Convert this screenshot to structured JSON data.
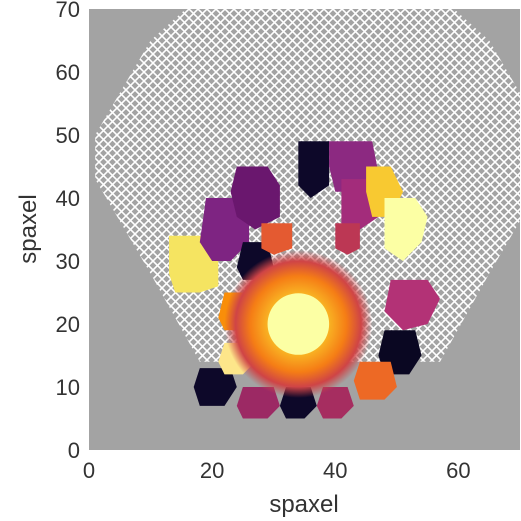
{
  "chart_data": {
    "type": "heatmap",
    "title": "",
    "xlabel": "spaxel",
    "ylabel": "spaxel",
    "xlim": [
      0,
      70
    ],
    "ylim": [
      0,
      70
    ],
    "x_ticks": [
      "0",
      "20",
      "40",
      "60"
    ],
    "y_ticks": [
      "0",
      "10",
      "20",
      "30",
      "40",
      "50",
      "60",
      "70"
    ],
    "grid": false,
    "colormap": "inferno",
    "background_color": "#a3a3a3",
    "hatch_region": {
      "pattern": "crosshatch",
      "outline": [
        [
          18,
          72
        ],
        [
          57,
          72
        ],
        [
          65,
          65
        ],
        [
          74,
          50
        ],
        [
          74,
          43
        ],
        [
          65,
          28
        ],
        [
          57,
          14
        ],
        [
          18,
          14
        ],
        [
          10,
          28
        ],
        [
          1,
          43
        ],
        [
          1,
          50
        ],
        [
          10,
          65
        ]
      ]
    },
    "regions": [
      {
        "color": "#f5e461",
        "polygon": [
          [
            13,
            34
          ],
          [
            20,
            34
          ],
          [
            21,
            32
          ],
          [
            21,
            26
          ],
          [
            18,
            25
          ],
          [
            14,
            25
          ],
          [
            13,
            28
          ]
        ]
      },
      {
        "color": "#7e2482",
        "polygon": [
          [
            19,
            40
          ],
          [
            24,
            40
          ],
          [
            26,
            38
          ],
          [
            26,
            33
          ],
          [
            23,
            30
          ],
          [
            20,
            30
          ],
          [
            18,
            33
          ]
        ]
      },
      {
        "color": "#6a176e",
        "polygon": [
          [
            24,
            45
          ],
          [
            29,
            45
          ],
          [
            31,
            42
          ],
          [
            31,
            37
          ],
          [
            27,
            35
          ],
          [
            24,
            37
          ],
          [
            23,
            41
          ]
        ]
      },
      {
        "color": "#0d0829",
        "polygon": [
          [
            34,
            49
          ],
          [
            39,
            49
          ],
          [
            39,
            42
          ],
          [
            36,
            40
          ],
          [
            34,
            42
          ]
        ]
      },
      {
        "color": "#8c2981",
        "polygon": [
          [
            39,
            49
          ],
          [
            46,
            49
          ],
          [
            47,
            44
          ],
          [
            44,
            41
          ],
          [
            40,
            41
          ],
          [
            39,
            45
          ]
        ]
      },
      {
        "color": "#a32c7b",
        "polygon": [
          [
            41,
            43
          ],
          [
            47,
            43
          ],
          [
            47,
            37
          ],
          [
            44,
            35
          ],
          [
            41,
            36
          ]
        ]
      },
      {
        "color": "#f8c931",
        "polygon": [
          [
            45,
            45
          ],
          [
            49,
            45
          ],
          [
            51,
            41
          ],
          [
            49,
            37
          ],
          [
            46,
            37
          ],
          [
            45,
            41
          ]
        ]
      },
      {
        "color": "#fcffa4",
        "polygon": [
          [
            48,
            40
          ],
          [
            53,
            40
          ],
          [
            55,
            37
          ],
          [
            54,
            33
          ],
          [
            51,
            30
          ],
          [
            48,
            32
          ]
        ]
      },
      {
        "color": "#b33276",
        "polygon": [
          [
            49,
            27
          ],
          [
            55,
            27
          ],
          [
            57,
            24
          ],
          [
            55,
            20
          ],
          [
            51,
            19
          ],
          [
            48,
            22
          ]
        ]
      },
      {
        "color": "#0a0722",
        "polygon": [
          [
            48,
            19
          ],
          [
            53,
            19
          ],
          [
            54,
            15
          ],
          [
            52,
            12
          ],
          [
            48,
            12
          ],
          [
            47,
            15
          ]
        ]
      },
      {
        "color": "#ed6925",
        "polygon": [
          [
            44,
            14
          ],
          [
            49,
            14
          ],
          [
            50,
            10
          ],
          [
            48,
            8
          ],
          [
            44,
            8
          ],
          [
            43,
            11
          ]
        ]
      },
      {
        "color": "#a62d60",
        "polygon": [
          [
            38,
            10
          ],
          [
            42,
            10
          ],
          [
            43,
            7
          ],
          [
            41,
            5
          ],
          [
            38,
            5
          ],
          [
            37,
            7
          ]
        ]
      },
      {
        "color": "#0d0829",
        "polygon": [
          [
            32,
            10
          ],
          [
            36,
            10
          ],
          [
            37,
            7
          ],
          [
            35,
            5
          ],
          [
            32,
            5
          ],
          [
            31,
            7
          ]
        ]
      },
      {
        "color": "#9c2964",
        "polygon": [
          [
            25,
            10
          ],
          [
            30,
            10
          ],
          [
            31,
            7
          ],
          [
            29,
            5
          ],
          [
            25,
            5
          ],
          [
            24,
            7
          ]
        ]
      },
      {
        "color": "#0d0829",
        "polygon": [
          [
            18,
            13
          ],
          [
            23,
            13
          ],
          [
            24,
            10
          ],
          [
            22,
            7
          ],
          [
            18,
            7
          ],
          [
            17,
            10
          ]
        ]
      },
      {
        "color": "#fde68a",
        "polygon": [
          [
            22,
            17
          ],
          [
            26,
            17
          ],
          [
            27,
            14
          ],
          [
            25,
            12
          ],
          [
            22,
            12
          ],
          [
            21,
            14
          ]
        ]
      },
      {
        "color": "#0d0829",
        "polygon": [
          [
            25,
            33
          ],
          [
            29,
            33
          ],
          [
            30,
            29
          ],
          [
            28,
            27
          ],
          [
            25,
            27
          ],
          [
            24,
            29
          ]
        ]
      },
      {
        "color": "#f98e09",
        "polygon": [
          [
            22,
            25
          ],
          [
            26,
            25
          ],
          [
            27,
            21
          ],
          [
            25,
            19
          ],
          [
            22,
            19
          ],
          [
            21,
            21
          ]
        ]
      },
      {
        "color": "#e45a31",
        "polygon": [
          [
            28,
            36
          ],
          [
            33,
            36
          ],
          [
            33,
            32
          ],
          [
            30,
            31
          ],
          [
            28,
            32
          ]
        ]
      },
      {
        "color": "#bc3754",
        "polygon": [
          [
            40,
            36
          ],
          [
            44,
            36
          ],
          [
            44,
            32
          ],
          [
            42,
            31
          ],
          [
            40,
            32
          ]
        ]
      }
    ],
    "core": {
      "center": [
        34,
        20
      ],
      "halo_radius": 12,
      "inner_radius": 5,
      "colors": [
        "#cf4446",
        "#f57d15",
        "#fac127",
        "#fcffa4"
      ]
    }
  }
}
